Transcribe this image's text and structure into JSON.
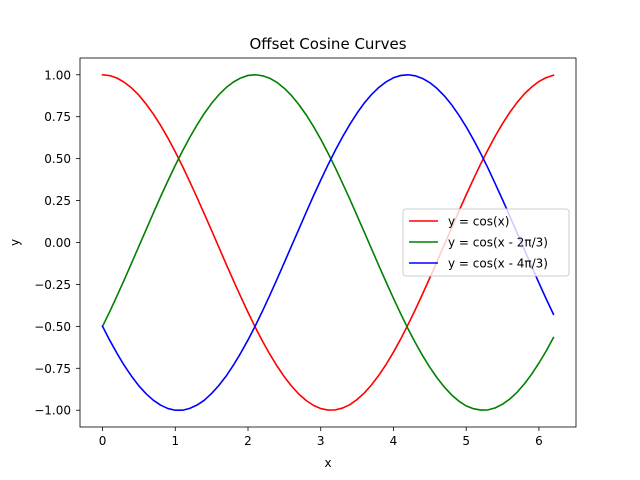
{
  "chart_data": {
    "type": "line",
    "title": "Offset Cosine Curves",
    "xlabel": "x",
    "ylabel": "y",
    "xlim": [
      -0.31,
      6.51
    ],
    "ylim": [
      -1.1,
      1.1
    ],
    "x_ticks": [
      {
        "value": 0,
        "label": "0"
      },
      {
        "value": 1,
        "label": "1"
      },
      {
        "value": 2,
        "label": "2"
      },
      {
        "value": 3,
        "label": "3"
      },
      {
        "value": 4,
        "label": "4"
      },
      {
        "value": 5,
        "label": "5"
      },
      {
        "value": 6,
        "label": "6"
      }
    ],
    "y_ticks": [
      {
        "value": 1.0,
        "label": "1.00"
      },
      {
        "value": 0.75,
        "label": "0.75"
      },
      {
        "value": 0.5,
        "label": "0.50"
      },
      {
        "value": 0.25,
        "label": "0.25"
      },
      {
        "value": 0.0,
        "label": "0.00"
      },
      {
        "value": -0.25,
        "label": "−0.25"
      },
      {
        "value": -0.5,
        "label": "−0.50"
      },
      {
        "value": -0.75,
        "label": "−0.75"
      },
      {
        "value": -1.0,
        "label": "−1.00"
      }
    ],
    "grid": false,
    "legend_position": "center-right",
    "x": [
      0.0,
      0.1,
      0.2,
      0.3,
      0.4,
      0.5,
      0.6,
      0.7,
      0.8,
      0.9,
      1.0,
      1.1,
      1.2,
      1.3,
      1.4,
      1.5,
      1.6,
      1.7,
      1.8,
      1.9,
      2.0,
      2.1,
      2.2,
      2.3,
      2.4,
      2.5,
      2.6,
      2.7,
      2.8,
      2.9,
      3.0,
      3.1,
      3.2,
      3.3,
      3.4,
      3.5,
      3.6,
      3.7,
      3.8,
      3.9,
      4.0,
      4.1,
      4.2,
      4.3,
      4.4,
      4.5,
      4.6,
      4.7,
      4.8,
      4.9,
      5.0,
      5.1,
      5.2,
      5.3,
      5.4,
      5.5,
      5.6,
      5.7,
      5.8,
      5.9,
      6.0,
      6.1,
      6.2
    ],
    "series": [
      {
        "name": "y = cos(x)",
        "color": "#ff0000",
        "values": [
          1.0,
          0.995,
          0.98,
          0.955,
          0.921,
          0.878,
          0.825,
          0.765,
          0.697,
          0.622,
          0.54,
          0.454,
          0.362,
          0.267,
          0.17,
          0.071,
          -0.029,
          -0.129,
          -0.227,
          -0.323,
          -0.416,
          -0.505,
          -0.589,
          -0.666,
          -0.737,
          -0.801,
          -0.857,
          -0.904,
          -0.942,
          -0.971,
          -0.99,
          -0.999,
          -0.998,
          -0.987,
          -0.967,
          -0.936,
          -0.897,
          -0.848,
          -0.791,
          -0.726,
          -0.654,
          -0.575,
          -0.49,
          -0.401,
          -0.307,
          -0.211,
          -0.112,
          -0.012,
          0.087,
          0.187,
          0.284,
          0.378,
          0.469,
          0.554,
          0.635,
          0.709,
          0.776,
          0.835,
          0.886,
          0.927,
          0.96,
          0.983,
          0.997
        ]
      },
      {
        "name": "y = cos(x - 2π/3)",
        "color": "#008000",
        "values": [
          -0.5,
          -0.411,
          -0.317,
          -0.221,
          -0.122,
          -0.022,
          0.077,
          0.177,
          0.275,
          0.369,
          0.46,
          0.546,
          0.627,
          0.702,
          0.77,
          0.83,
          0.881,
          0.924,
          0.957,
          0.981,
          0.996,
          1.0,
          0.994,
          0.979,
          0.954,
          0.919,
          0.875,
          0.822,
          0.761,
          0.692,
          0.616,
          0.533,
          0.446,
          0.353,
          0.258,
          0.16,
          0.061,
          -0.039,
          -0.139,
          -0.237,
          -0.333,
          -0.425,
          -0.514,
          -0.597,
          -0.674,
          -0.744,
          -0.807,
          -0.862,
          -0.909,
          -0.946,
          -0.974,
          -0.991,
          -0.999,
          -0.998,
          -0.986,
          -0.964,
          -0.933,
          -0.893,
          -0.843,
          -0.785,
          -0.719,
          -0.647,
          -0.567
        ]
      },
      {
        "name": "y = cos(x - 4π/3)",
        "color": "#0000ff",
        "values": [
          -0.5,
          -0.584,
          -0.662,
          -0.734,
          -0.798,
          -0.855,
          -0.902,
          -0.941,
          -0.97,
          -0.99,
          -1.0,
          -1.0,
          -0.989,
          -0.969,
          -0.94,
          -0.9,
          -0.852,
          -0.796,
          -0.731,
          -0.659,
          -0.581,
          -0.497,
          -0.408,
          -0.314,
          -0.218,
          -0.119,
          -0.019,
          0.08,
          0.18,
          0.278,
          0.372,
          0.463,
          0.549,
          0.63,
          0.704,
          0.772,
          0.832,
          0.883,
          0.925,
          0.958,
          0.982,
          0.996,
          1.0,
          0.994,
          0.978,
          0.953,
          0.918,
          0.874,
          0.821,
          0.759,
          0.69,
          0.613,
          0.531,
          0.443,
          0.35,
          0.255,
          0.157,
          0.058,
          -0.043,
          -0.142,
          -0.241,
          -0.336,
          -0.428
        ]
      }
    ]
  }
}
